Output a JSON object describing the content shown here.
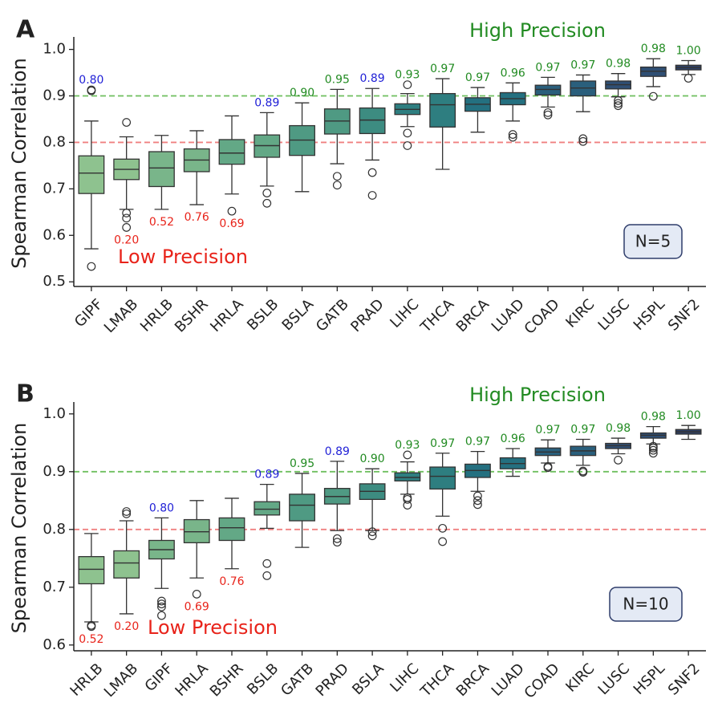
{
  "colors": {
    "high": "#228b22",
    "low": "#e8231a",
    "mid": "#1f1fd6",
    "high_line": "#6fbf5f",
    "low_line": "#f08080",
    "nbox_fill": "#e4eaf5",
    "nbox_stroke": "#2e3d6b",
    "palette": [
      "#8ec28f",
      "#79b58a",
      "#63a886",
      "#4f9a83",
      "#3d8c81",
      "#2e7e80",
      "#247080",
      "#2a5f7c",
      "#2f4f74",
      "#2e4067"
    ]
  },
  "chart_data": [
    {
      "type": "box",
      "panel_label": "A",
      "ylabel": "Spearman Correlation",
      "ylim": [
        0.49,
        1.02
      ],
      "yticks": [
        0.5,
        0.6,
        0.7,
        0.8,
        0.9,
        1.0
      ],
      "ytick_labels": [
        "0.5",
        "0.6",
        "0.7",
        "0.8",
        "0.9",
        "1.0"
      ],
      "reference_lines": [
        0.8,
        0.9
      ],
      "high_text": "High Precision",
      "low_text": "Low Precision",
      "n_label": "N=5",
      "categories": [
        "GIPF",
        "LMAB",
        "HRLB",
        "BSHR",
        "HRLA",
        "BSLB",
        "BSLA",
        "GATB",
        "PRAD",
        "LIHC",
        "THCA",
        "BRCA",
        "LUAD",
        "COAD",
        "KIRC",
        "LUSC",
        "HSPL",
        "SNF2"
      ],
      "boxes": [
        {
          "q1": 0.69,
          "median": 0.734,
          "q3": 0.771,
          "whislo": 0.571,
          "whishi": 0.846,
          "fliers": [
            0.533,
            0.911,
            0.913
          ]
        },
        {
          "q1": 0.72,
          "median": 0.742,
          "q3": 0.764,
          "whislo": 0.656,
          "whishi": 0.812,
          "fliers": [
            0.617,
            0.637,
            0.648,
            0.843
          ]
        },
        {
          "q1": 0.705,
          "median": 0.745,
          "q3": 0.78,
          "whislo": 0.656,
          "whishi": 0.815,
          "fliers": []
        },
        {
          "q1": 0.737,
          "median": 0.762,
          "q3": 0.786,
          "whislo": 0.666,
          "whishi": 0.825,
          "fliers": []
        },
        {
          "q1": 0.753,
          "median": 0.777,
          "q3": 0.806,
          "whislo": 0.689,
          "whishi": 0.857,
          "fliers": [
            0.652
          ]
        },
        {
          "q1": 0.768,
          "median": 0.793,
          "q3": 0.816,
          "whislo": 0.706,
          "whishi": 0.864,
          "fliers": [
            0.669,
            0.691
          ]
        },
        {
          "q1": 0.772,
          "median": 0.805,
          "q3": 0.836,
          "whislo": 0.694,
          "whishi": 0.885,
          "fliers": []
        },
        {
          "q1": 0.818,
          "median": 0.846,
          "q3": 0.872,
          "whislo": 0.754,
          "whishi": 0.914,
          "fliers": [
            0.708,
            0.727
          ]
        },
        {
          "q1": 0.819,
          "median": 0.848,
          "q3": 0.874,
          "whislo": 0.762,
          "whishi": 0.916,
          "fliers": [
            0.686,
            0.735
          ]
        },
        {
          "q1": 0.86,
          "median": 0.871,
          "q3": 0.883,
          "whislo": 0.834,
          "whishi": 0.905,
          "fliers": [
            0.793,
            0.82,
            0.924
          ]
        },
        {
          "q1": 0.833,
          "median": 0.881,
          "q3": 0.905,
          "whislo": 0.742,
          "whishi": 0.937,
          "fliers": []
        },
        {
          "q1": 0.867,
          "median": 0.882,
          "q3": 0.896,
          "whislo": 0.822,
          "whishi": 0.918,
          "fliers": []
        },
        {
          "q1": 0.881,
          "median": 0.894,
          "q3": 0.907,
          "whislo": 0.846,
          "whishi": 0.928,
          "fliers": [
            0.811,
            0.817
          ]
        },
        {
          "q1": 0.902,
          "median": 0.914,
          "q3": 0.923,
          "whislo": 0.876,
          "whishi": 0.94,
          "fliers": [
            0.859,
            0.864
          ]
        },
        {
          "q1": 0.9,
          "median": 0.917,
          "q3": 0.932,
          "whislo": 0.866,
          "whishi": 0.945,
          "fliers": [
            0.802,
            0.808
          ]
        },
        {
          "q1": 0.915,
          "median": 0.924,
          "q3": 0.932,
          "whislo": 0.898,
          "whishi": 0.948,
          "fliers": [
            0.879,
            0.884,
            0.89
          ]
        },
        {
          "q1": 0.942,
          "median": 0.953,
          "q3": 0.962,
          "whislo": 0.92,
          "whishi": 0.98,
          "fliers": [
            0.899
          ]
        },
        {
          "q1": 0.956,
          "median": 0.961,
          "q3": 0.966,
          "whislo": 0.946,
          "whishi": 0.976,
          "fliers": [
            0.938
          ]
        }
      ],
      "value_labels": [
        {
          "text": "0.80",
          "cls": "mid",
          "pos": "above"
        },
        {
          "text": "0.20",
          "cls": "low",
          "pos": "below"
        },
        {
          "text": "0.52",
          "cls": "low",
          "pos": "below"
        },
        {
          "text": "0.76",
          "cls": "low",
          "pos": "below"
        },
        {
          "text": "0.69",
          "cls": "low",
          "pos": "below"
        },
        {
          "text": "0.89",
          "cls": "mid",
          "pos": "above"
        },
        {
          "text": "0.90",
          "cls": "high",
          "pos": "above"
        },
        {
          "text": "0.95",
          "cls": "high",
          "pos": "above"
        },
        {
          "text": "0.89",
          "cls": "mid",
          "pos": "above"
        },
        {
          "text": "0.93",
          "cls": "high",
          "pos": "above"
        },
        {
          "text": "0.97",
          "cls": "high",
          "pos": "above"
        },
        {
          "text": "0.97",
          "cls": "high",
          "pos": "above"
        },
        {
          "text": "0.96",
          "cls": "high",
          "pos": "above"
        },
        {
          "text": "0.97",
          "cls": "high",
          "pos": "above"
        },
        {
          "text": "0.97",
          "cls": "high",
          "pos": "above"
        },
        {
          "text": "0.98",
          "cls": "high",
          "pos": "above"
        },
        {
          "text": "0.98",
          "cls": "high",
          "pos": "above"
        },
        {
          "text": "1.00",
          "cls": "high",
          "pos": "above"
        }
      ]
    },
    {
      "type": "box",
      "panel_label": "B",
      "ylabel": "Spearman Correlation",
      "ylim": [
        0.59,
        1.015
      ],
      "yticks": [
        0.6,
        0.7,
        0.8,
        0.9,
        1.0
      ],
      "ytick_labels": [
        "0.6",
        "0.7",
        "0.8",
        "0.9",
        "1.0"
      ],
      "reference_lines": [
        0.8,
        0.9
      ],
      "high_text": "High Precision",
      "low_text": "Low Precision",
      "n_label": "N=10",
      "categories": [
        "HRLB",
        "LMAB",
        "GIPF",
        "HRLA",
        "BSHR",
        "BSLB",
        "GATB",
        "PRAD",
        "BSLA",
        "LIHC",
        "THCA",
        "BRCA",
        "LUAD",
        "COAD",
        "KIRC",
        "LUSC",
        "HSPL",
        "SNF2"
      ],
      "boxes": [
        {
          "q1": 0.706,
          "median": 0.731,
          "q3": 0.753,
          "whislo": 0.64,
          "whishi": 0.793,
          "fliers": [
            0.632,
            0.634
          ]
        },
        {
          "q1": 0.716,
          "median": 0.742,
          "q3": 0.763,
          "whislo": 0.654,
          "whishi": 0.815,
          "fliers": [
            0.827,
            0.831
          ]
        },
        {
          "q1": 0.749,
          "median": 0.765,
          "q3": 0.781,
          "whislo": 0.698,
          "whishi": 0.82,
          "fliers": [
            0.651,
            0.666,
            0.671,
            0.676
          ]
        },
        {
          "q1": 0.777,
          "median": 0.796,
          "q3": 0.817,
          "whislo": 0.716,
          "whishi": 0.85,
          "fliers": [
            0.688
          ]
        },
        {
          "q1": 0.781,
          "median": 0.803,
          "q3": 0.82,
          "whislo": 0.732,
          "whishi": 0.854,
          "fliers": []
        },
        {
          "q1": 0.825,
          "median": 0.835,
          "q3": 0.848,
          "whislo": 0.802,
          "whishi": 0.878,
          "fliers": [
            0.72,
            0.741
          ]
        },
        {
          "q1": 0.815,
          "median": 0.842,
          "q3": 0.861,
          "whislo": 0.769,
          "whishi": 0.897,
          "fliers": []
        },
        {
          "q1": 0.844,
          "median": 0.857,
          "q3": 0.871,
          "whislo": 0.798,
          "whishi": 0.918,
          "fliers": [
            0.778,
            0.784
          ]
        },
        {
          "q1": 0.852,
          "median": 0.866,
          "q3": 0.879,
          "whislo": 0.798,
          "whishi": 0.905,
          "fliers": [
            0.789,
            0.796
          ]
        },
        {
          "q1": 0.884,
          "median": 0.89,
          "q3": 0.898,
          "whislo": 0.861,
          "whishi": 0.917,
          "fliers": [
            0.842,
            0.852,
            0.855,
            0.929
          ]
        },
        {
          "q1": 0.87,
          "median": 0.892,
          "q3": 0.908,
          "whislo": 0.823,
          "whishi": 0.932,
          "fliers": [
            0.779,
            0.802
          ]
        },
        {
          "q1": 0.89,
          "median": 0.902,
          "q3": 0.913,
          "whislo": 0.866,
          "whishi": 0.935,
          "fliers": [
            0.843,
            0.85,
            0.858
          ]
        },
        {
          "q1": 0.905,
          "median": 0.914,
          "q3": 0.924,
          "whislo": 0.892,
          "whishi": 0.94,
          "fliers": []
        },
        {
          "q1": 0.928,
          "median": 0.934,
          "q3": 0.941,
          "whislo": 0.915,
          "whishi": 0.955,
          "fliers": [
            0.907,
            0.909
          ]
        },
        {
          "q1": 0.928,
          "median": 0.936,
          "q3": 0.944,
          "whislo": 0.911,
          "whishi": 0.956,
          "fliers": [
            0.899,
            0.901
          ]
        },
        {
          "q1": 0.94,
          "median": 0.945,
          "q3": 0.949,
          "whislo": 0.931,
          "whishi": 0.958,
          "fliers": [
            0.92
          ]
        },
        {
          "q1": 0.958,
          "median": 0.963,
          "q3": 0.967,
          "whislo": 0.948,
          "whishi": 0.978,
          "fliers": [
            0.932,
            0.937,
            0.941,
            0.944
          ]
        },
        {
          "q1": 0.965,
          "median": 0.969,
          "q3": 0.973,
          "whislo": 0.956,
          "whishi": 0.98,
          "fliers": []
        }
      ],
      "value_labels": [
        {
          "text": "0.52",
          "cls": "low",
          "pos": "below"
        },
        {
          "text": "0.20",
          "cls": "low",
          "pos": "below"
        },
        {
          "text": "0.80",
          "cls": "mid",
          "pos": "above"
        },
        {
          "text": "0.69",
          "cls": "low",
          "pos": "below"
        },
        {
          "text": "0.76",
          "cls": "low",
          "pos": "below"
        },
        {
          "text": "0.89",
          "cls": "mid",
          "pos": "above"
        },
        {
          "text": "0.95",
          "cls": "high",
          "pos": "above"
        },
        {
          "text": "0.89",
          "cls": "mid",
          "pos": "above"
        },
        {
          "text": "0.90",
          "cls": "high",
          "pos": "above"
        },
        {
          "text": "0.93",
          "cls": "high",
          "pos": "above"
        },
        {
          "text": "0.97",
          "cls": "high",
          "pos": "above"
        },
        {
          "text": "0.97",
          "cls": "high",
          "pos": "above"
        },
        {
          "text": "0.96",
          "cls": "high",
          "pos": "above"
        },
        {
          "text": "0.97",
          "cls": "high",
          "pos": "above"
        },
        {
          "text": "0.97",
          "cls": "high",
          "pos": "above"
        },
        {
          "text": "0.98",
          "cls": "high",
          "pos": "above"
        },
        {
          "text": "0.98",
          "cls": "high",
          "pos": "above"
        },
        {
          "text": "1.00",
          "cls": "high",
          "pos": "above"
        }
      ]
    }
  ]
}
